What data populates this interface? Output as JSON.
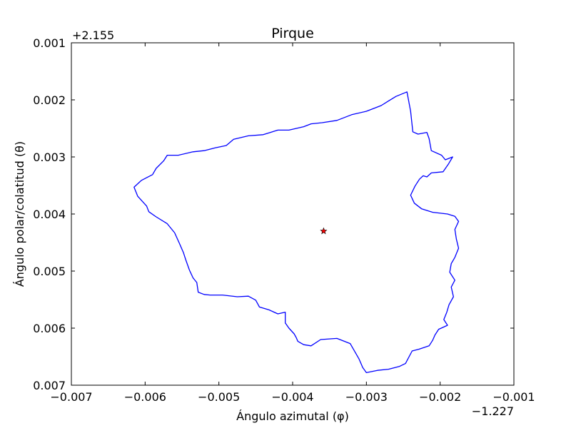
{
  "chart_data": {
    "type": "line",
    "title": "Pirque",
    "xlabel": "Ángulo azimutal (φ)",
    "ylabel": "Ángulo polar/colatitud (θ)",
    "x_offset_label": "−1.227",
    "y_offset_label": "+2.155",
    "xlim": [
      -0.007,
      -0.001
    ],
    "ylim": [
      0.007,
      0.001
    ],
    "x_ticks": [
      -0.007,
      -0.006,
      -0.005,
      -0.004,
      -0.003,
      -0.002,
      -0.001
    ],
    "x_tick_labels": [
      "−0.007",
      "−0.006",
      "−0.005",
      "−0.004",
      "−0.003",
      "−0.002",
      "−0.001"
    ],
    "y_ticks": [
      0.001,
      0.002,
      0.003,
      0.004,
      0.005,
      0.006,
      0.007
    ],
    "y_tick_labels": [
      "0.001",
      "0.002",
      "0.003",
      "0.004",
      "0.005",
      "0.006",
      "0.007"
    ],
    "grid": false,
    "colors": {
      "boundary": "#0000ff",
      "marker": "#ff0000"
    },
    "series": [
      {
        "values": [
          [
            -0.00245,
            0.00186
          ],
          [
            -0.0024,
            0.0022
          ],
          [
            -0.00237,
            0.00256
          ],
          [
            -0.0023,
            0.0026
          ],
          [
            -0.00218,
            0.00257
          ],
          [
            -0.00215,
            0.00268
          ],
          [
            -0.00212,
            0.00289
          ],
          [
            -0.00198,
            0.00297
          ],
          [
            -0.00193,
            0.00305
          ],
          [
            -0.00183,
            0.003
          ],
          [
            -0.00189,
            0.00313
          ],
          [
            -0.00196,
            0.00326
          ],
          [
            -0.00212,
            0.00328
          ],
          [
            -0.00218,
            0.00335
          ],
          [
            -0.00223,
            0.00333
          ],
          [
            -0.00228,
            0.00339
          ],
          [
            -0.00234,
            0.00351
          ],
          [
            -0.0024,
            0.00367
          ],
          [
            -0.00235,
            0.00381
          ],
          [
            -0.00225,
            0.00391
          ],
          [
            -0.0021,
            0.00397
          ],
          [
            -0.0019,
            0.004
          ],
          [
            -0.0018,
            0.00404
          ],
          [
            -0.00175,
            0.00413
          ],
          [
            -0.0018,
            0.00427
          ],
          [
            -0.00178,
            0.00444
          ],
          [
            -0.00175,
            0.0046
          ],
          [
            -0.0018,
            0.00476
          ],
          [
            -0.00185,
            0.00487
          ],
          [
            -0.00187,
            0.00502
          ],
          [
            -0.0018,
            0.00516
          ],
          [
            -0.00185,
            0.00528
          ],
          [
            -0.00182,
            0.00545
          ],
          [
            -0.00188,
            0.00559
          ],
          [
            -0.00191,
            0.00572
          ],
          [
            -0.00195,
            0.00585
          ],
          [
            -0.0019,
            0.00595
          ],
          [
            -0.00202,
            0.00602
          ],
          [
            -0.00207,
            0.00612
          ],
          [
            -0.0021,
            0.00621
          ],
          [
            -0.00215,
            0.00631
          ],
          [
            -0.00229,
            0.00637
          ],
          [
            -0.00238,
            0.0064
          ],
          [
            -0.00247,
            0.00662
          ],
          [
            -0.00255,
            0.00667
          ],
          [
            -0.0027,
            0.00672
          ],
          [
            -0.00285,
            0.00674
          ],
          [
            -0.003,
            0.00678
          ],
          [
            -0.00305,
            0.00669
          ],
          [
            -0.0031,
            0.00654
          ],
          [
            -0.00322,
            0.00627
          ],
          [
            -0.0034,
            0.00618
          ],
          [
            -0.00362,
            0.0062
          ],
          [
            -0.00375,
            0.00631
          ],
          [
            -0.00385,
            0.00629
          ],
          [
            -0.00393,
            0.00623
          ],
          [
            -0.00395,
            0.00617
          ],
          [
            -0.00398,
            0.0061
          ],
          [
            -0.00405,
            0.006
          ],
          [
            -0.0041,
            0.00591
          ],
          [
            -0.0041,
            0.00572
          ],
          [
            -0.0042,
            0.00575
          ],
          [
            -0.00432,
            0.00568
          ],
          [
            -0.00445,
            0.00563
          ],
          [
            -0.0045,
            0.00551
          ],
          [
            -0.0046,
            0.00544
          ],
          [
            -0.00475,
            0.00545
          ],
          [
            -0.00495,
            0.00542
          ],
          [
            -0.00512,
            0.00542
          ],
          [
            -0.0052,
            0.00541
          ],
          [
            -0.00528,
            0.00537
          ],
          [
            -0.0053,
            0.0052
          ],
          [
            -0.00535,
            0.00512
          ],
          [
            -0.0054,
            0.00498
          ],
          [
            -0.00545,
            0.0048
          ],
          [
            -0.00548,
            0.00468
          ],
          [
            -0.00553,
            0.00453
          ],
          [
            -0.0056,
            0.00433
          ],
          [
            -0.0057,
            0.00417
          ],
          [
            -0.00585,
            0.00405
          ],
          [
            -0.00595,
            0.00396
          ],
          [
            -0.00598,
            0.00386
          ],
          [
            -0.0061,
            0.00369
          ],
          [
            -0.00615,
            0.00353
          ],
          [
            -0.00605,
            0.00341
          ],
          [
            -0.0059,
            0.00331
          ],
          [
            -0.00585,
            0.0032
          ],
          [
            -0.00575,
            0.00307
          ],
          [
            -0.0057,
            0.00297
          ],
          [
            -0.00555,
            0.00297
          ],
          [
            -0.00535,
            0.00291
          ],
          [
            -0.0052,
            0.00289
          ],
          [
            -0.00505,
            0.00284
          ],
          [
            -0.0049,
            0.0028
          ],
          [
            -0.0048,
            0.00269
          ],
          [
            -0.0046,
            0.00263
          ],
          [
            -0.0044,
            0.00261
          ],
          [
            -0.0042,
            0.00253
          ],
          [
            -0.00405,
            0.00253
          ],
          [
            -0.00385,
            0.00247
          ],
          [
            -0.00375,
            0.00242
          ],
          [
            -0.0036,
            0.0024
          ],
          [
            -0.0034,
            0.00236
          ],
          [
            -0.0032,
            0.00226
          ],
          [
            -0.003,
            0.0022
          ],
          [
            -0.0028,
            0.0021
          ],
          [
            -0.0027,
            0.00202
          ],
          [
            -0.0026,
            0.00194
          ],
          [
            -0.00245,
            0.00186
          ]
        ]
      },
      {
        "values": [
          [
            -0.00358,
            0.0043
          ]
        ]
      }
    ]
  }
}
